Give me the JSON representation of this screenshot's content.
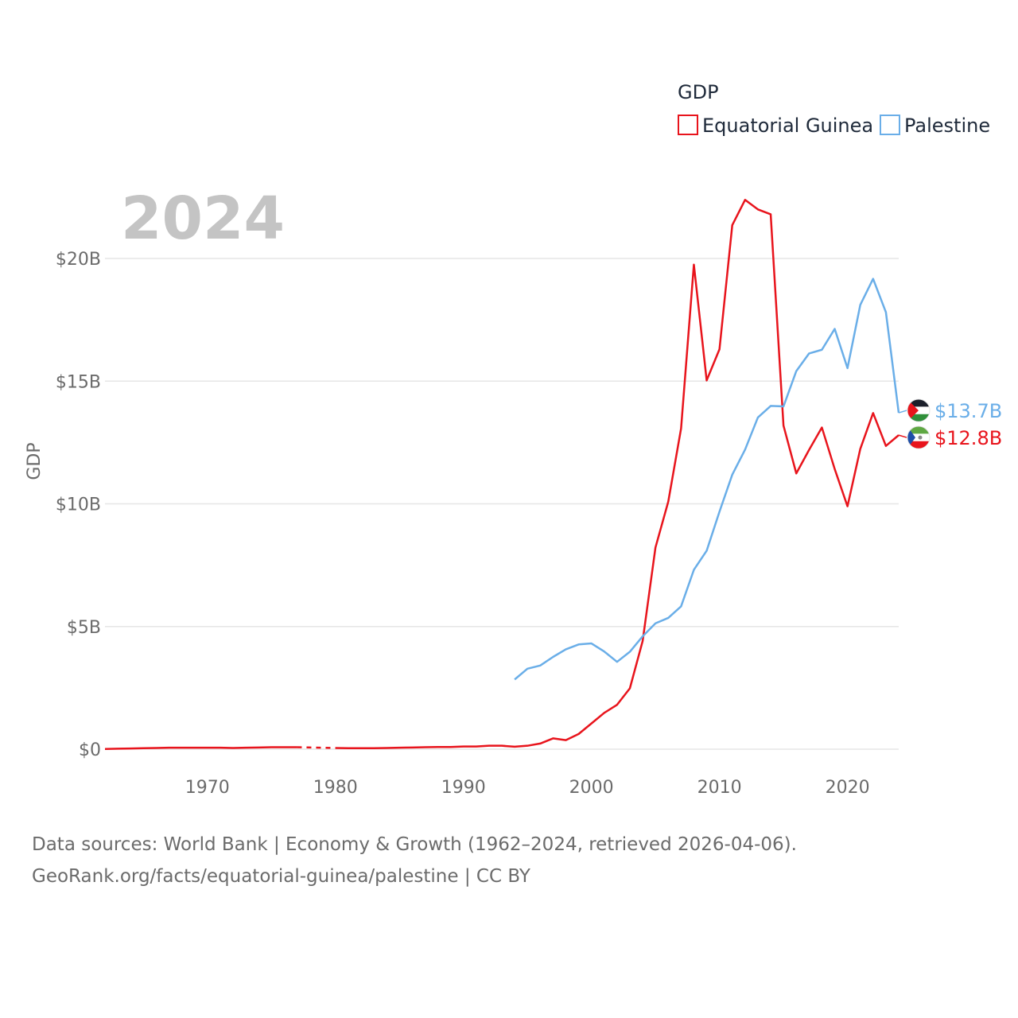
{
  "chart_data": {
    "type": "line",
    "year_label": "2024",
    "ylabel": "GDP",
    "xlabel": "",
    "xlim": [
      1962,
      2024
    ],
    "ylim": [
      0,
      23
    ],
    "y_ticks": [
      {
        "value": 0,
        "label": "$0"
      },
      {
        "value": 5,
        "label": "$5B"
      },
      {
        "value": 10,
        "label": "$10B"
      },
      {
        "value": 15,
        "label": "$15B"
      },
      {
        "value": 20,
        "label": "$20B"
      }
    ],
    "x_ticks": [
      {
        "value": 1970,
        "label": "1970"
      },
      {
        "value": 1980,
        "label": "1980"
      },
      {
        "value": 1990,
        "label": "1990"
      },
      {
        "value": 2000,
        "label": "2000"
      },
      {
        "value": 2010,
        "label": "2010"
      },
      {
        "value": 2020,
        "label": "2020"
      }
    ],
    "legend": {
      "title": "GDP",
      "position": "top-right"
    },
    "units": "billion USD",
    "series": [
      {
        "name": "Equatorial Guinea",
        "color": "#e8141c",
        "end_label": "$12.8B",
        "flag": "equatorial-guinea-flag-icon",
        "gap": [
          1977,
          1980
        ],
        "x": [
          1962,
          1963,
          1964,
          1965,
          1966,
          1967,
          1968,
          1969,
          1970,
          1971,
          1972,
          1973,
          1974,
          1975,
          1976,
          1977,
          1980,
          1981,
          1982,
          1983,
          1984,
          1985,
          1986,
          1987,
          1988,
          1989,
          1990,
          1991,
          1992,
          1993,
          1994,
          1995,
          1996,
          1997,
          1998,
          1999,
          2000,
          2001,
          2002,
          2003,
          2004,
          2005,
          2006,
          2007,
          2008,
          2009,
          2010,
          2011,
          2012,
          2013,
          2014,
          2015,
          2016,
          2017,
          2018,
          2019,
          2020,
          2021,
          2022,
          2023,
          2024
        ],
        "values": [
          0.01,
          0.02,
          0.03,
          0.04,
          0.05,
          0.06,
          0.06,
          0.06,
          0.06,
          0.06,
          0.05,
          0.06,
          0.07,
          0.08,
          0.08,
          0.08,
          0.05,
          0.04,
          0.04,
          0.04,
          0.05,
          0.06,
          0.07,
          0.08,
          0.09,
          0.09,
          0.11,
          0.11,
          0.14,
          0.14,
          0.1,
          0.14,
          0.23,
          0.44,
          0.37,
          0.62,
          1.05,
          1.48,
          1.81,
          2.48,
          4.41,
          8.22,
          10.09,
          13.07,
          19.75,
          15.03,
          16.3,
          21.36,
          22.39,
          22.0,
          21.8,
          13.19,
          11.24,
          12.2,
          13.11,
          11.42,
          9.9,
          12.24,
          13.7,
          12.36,
          12.8
        ]
      },
      {
        "name": "Palestine",
        "color": "#6aaee8",
        "end_label": "$13.7B",
        "flag": "palestine-flag-icon",
        "x": [
          1994,
          1995,
          1996,
          1997,
          1998,
          1999,
          2000,
          2001,
          2002,
          2003,
          2004,
          2005,
          2006,
          2007,
          2008,
          2009,
          2010,
          2011,
          2012,
          2013,
          2014,
          2015,
          2016,
          2017,
          2018,
          2019,
          2020,
          2021,
          2022,
          2023,
          2024
        ],
        "values": [
          2.84,
          3.28,
          3.41,
          3.76,
          4.07,
          4.27,
          4.31,
          3.98,
          3.56,
          3.97,
          4.6,
          5.13,
          5.35,
          5.82,
          7.31,
          8.09,
          9.68,
          11.19,
          12.21,
          13.52,
          13.99,
          13.97,
          15.41,
          16.13,
          16.28,
          17.13,
          15.53,
          18.11,
          19.17,
          17.81,
          13.71
        ]
      }
    ]
  },
  "footer": {
    "line1": "Data sources: World Bank | Economy & Growth (1962–2024, retrieved 2026-04-06).",
    "line2": "GeoRank.org/facts/equatorial-guinea/palestine | CC BY"
  }
}
